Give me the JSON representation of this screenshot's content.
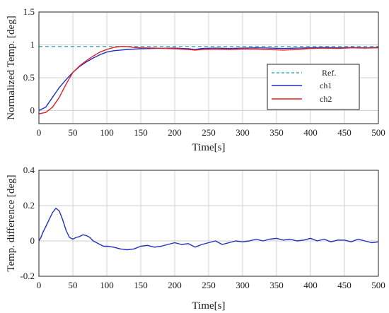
{
  "chart_data": [
    {
      "type": "line",
      "xlabel": "Time[s]",
      "ylabel": "Normalized Temp. [deg]",
      "xlim": [
        0,
        500
      ],
      "ylim": [
        -0.2,
        1.5
      ],
      "xticks": [
        "0",
        "50",
        "100",
        "150",
        "200",
        "250",
        "300",
        "350",
        "400",
        "450",
        "500"
      ],
      "yticks": [
        "0",
        "0.5",
        "1",
        "1.5"
      ],
      "ytick_values": [
        0,
        0.5,
        1,
        1.5
      ],
      "grid": true,
      "legend_position": "right",
      "series": [
        {
          "name": "Ref.",
          "style": "dashed",
          "color": "#3aa6b9",
          "x": [
            0,
            500
          ],
          "y": [
            0.975,
            0.975
          ]
        },
        {
          "name": "ch1",
          "color": "#1f2fc0",
          "x": [
            0,
            10,
            20,
            30,
            40,
            50,
            60,
            70,
            80,
            90,
            100,
            110,
            120,
            130,
            140,
            150,
            170,
            200,
            220,
            230,
            240,
            260,
            280,
            300,
            320,
            340,
            360,
            380,
            400,
            420,
            440,
            460,
            480,
            500
          ],
          "y": [
            0.0,
            0.05,
            0.2,
            0.35,
            0.47,
            0.58,
            0.67,
            0.74,
            0.8,
            0.85,
            0.89,
            0.91,
            0.92,
            0.93,
            0.935,
            0.94,
            0.945,
            0.95,
            0.94,
            0.93,
            0.945,
            0.95,
            0.945,
            0.95,
            0.955,
            0.95,
            0.945,
            0.95,
            0.955,
            0.96,
            0.955,
            0.96,
            0.955,
            0.96
          ]
        },
        {
          "name": "ch2",
          "color": "#e0202a",
          "x": [
            0,
            10,
            20,
            30,
            40,
            50,
            60,
            70,
            80,
            90,
            100,
            110,
            120,
            130,
            140,
            150,
            170,
            200,
            220,
            230,
            240,
            260,
            280,
            300,
            320,
            340,
            360,
            380,
            400,
            420,
            440,
            460,
            480,
            500
          ],
          "y": [
            -0.05,
            -0.03,
            0.05,
            0.2,
            0.4,
            0.58,
            0.68,
            0.76,
            0.83,
            0.89,
            0.93,
            0.96,
            0.975,
            0.975,
            0.96,
            0.955,
            0.95,
            0.94,
            0.93,
            0.92,
            0.93,
            0.935,
            0.93,
            0.935,
            0.935,
            0.93,
            0.92,
            0.93,
            0.945,
            0.95,
            0.945,
            0.955,
            0.95,
            0.955
          ]
        }
      ]
    },
    {
      "type": "line",
      "xlabel": "Time[s]",
      "ylabel": "Temp. difference [deg]",
      "xlim": [
        0,
        500
      ],
      "ylim": [
        -0.2,
        0.4
      ],
      "xticks": [
        "0",
        "50",
        "100",
        "150",
        "200",
        "250",
        "300",
        "350",
        "400",
        "450",
        "500"
      ],
      "yticks": [
        "-0.2",
        "0",
        "0.2",
        "0.4"
      ],
      "ytick_values": [
        -0.2,
        0,
        0.2,
        0.4
      ],
      "grid": true,
      "series": [
        {
          "color": "#1f2fc0",
          "x": [
            0,
            3,
            6,
            10,
            15,
            20,
            25,
            30,
            35,
            40,
            45,
            50,
            55,
            60,
            65,
            70,
            75,
            80,
            85,
            90,
            95,
            100,
            110,
            120,
            130,
            140,
            150,
            160,
            170,
            180,
            190,
            200,
            210,
            220,
            230,
            240,
            250,
            260,
            270,
            280,
            290,
            300,
            310,
            320,
            330,
            340,
            350,
            360,
            370,
            380,
            390,
            400,
            410,
            420,
            430,
            440,
            450,
            460,
            470,
            480,
            490,
            500
          ],
          "y": [
            0.0,
            0.02,
            0.05,
            0.08,
            0.12,
            0.16,
            0.185,
            0.17,
            0.12,
            0.06,
            0.02,
            0.01,
            0.02,
            0.025,
            0.035,
            0.03,
            0.02,
            0.0,
            -0.01,
            -0.02,
            -0.03,
            -0.03,
            -0.035,
            -0.045,
            -0.05,
            -0.045,
            -0.03,
            -0.025,
            -0.035,
            -0.03,
            -0.02,
            -0.01,
            -0.02,
            -0.015,
            -0.035,
            -0.02,
            -0.01,
            0.0,
            -0.02,
            -0.01,
            0.0,
            -0.005,
            0.0,
            0.01,
            0.0,
            0.01,
            0.015,
            0.005,
            0.01,
            0.0,
            0.005,
            0.015,
            0.0,
            0.01,
            -0.005,
            0.005,
            0.005,
            -0.005,
            0.01,
            0.0,
            -0.01,
            -0.005
          ]
        }
      ]
    }
  ]
}
